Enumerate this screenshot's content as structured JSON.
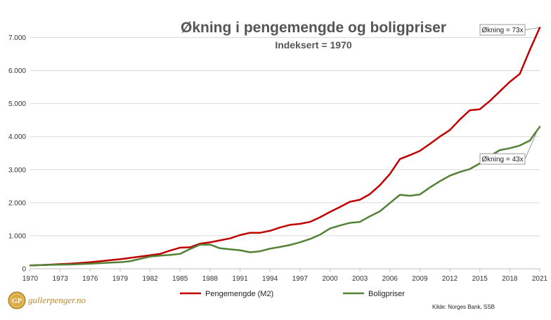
{
  "chart_data": {
    "type": "line",
    "title": "Økning i pengemengde og boligpriser",
    "subtitle": "Indeksert = 1970",
    "x_ticks": [
      "1970",
      "1973",
      "1976",
      "1979",
      "1982",
      "1985",
      "1988",
      "1991",
      "1994",
      "1997",
      "2000",
      "2003",
      "2006",
      "2009",
      "2012",
      "2015",
      "2018",
      "2021"
    ],
    "y_ticks": [
      "0",
      "1.000",
      "2.000",
      "3.000",
      "4.000",
      "5.000",
      "6.000",
      "7.000"
    ],
    "ylim": [
      0,
      7500
    ],
    "xlim": [
      1970,
      2021
    ],
    "grid": true,
    "legend_placement": "bottom",
    "series": [
      {
        "name": "Pengemengde (M2)",
        "color": "#c00000",
        "x": [
          1970,
          1971,
          1972,
          1973,
          1974,
          1975,
          1976,
          1977,
          1978,
          1979,
          1980,
          1981,
          1982,
          1983,
          1984,
          1985,
          1986,
          1987,
          1988,
          1989,
          1990,
          1991,
          1992,
          1993,
          1994,
          1995,
          1996,
          1997,
          1998,
          1999,
          2000,
          2001,
          2002,
          2003,
          2004,
          2005,
          2006,
          2007,
          2008,
          2009,
          2010,
          2011,
          2012,
          2013,
          2014,
          2015,
          2016,
          2017,
          2018,
          2019,
          2020,
          2021
        ],
        "values": [
          100,
          110,
          125,
          140,
          155,
          175,
          200,
          230,
          260,
          290,
          330,
          370,
          410,
          450,
          550,
          640,
          650,
          760,
          800,
          860,
          920,
          1020,
          1090,
          1090,
          1150,
          1250,
          1330,
          1360,
          1420,
          1560,
          1720,
          1870,
          2030,
          2090,
          2260,
          2530,
          2870,
          3320,
          3440,
          3570,
          3780,
          4000,
          4200,
          4520,
          4800,
          4830,
          5080,
          5370,
          5660,
          5900,
          6620,
          7300
        ]
      },
      {
        "name": "Boligpriser",
        "color": "#538135",
        "x": [
          1970,
          1971,
          1972,
          1973,
          1974,
          1975,
          1976,
          1977,
          1978,
          1979,
          1980,
          1981,
          1982,
          1983,
          1984,
          1985,
          1986,
          1987,
          1988,
          1989,
          1990,
          1991,
          1992,
          1993,
          1994,
          1995,
          1996,
          1997,
          1998,
          1999,
          2000,
          2001,
          2002,
          2003,
          2004,
          2005,
          2006,
          2007,
          2008,
          2009,
          2010,
          2011,
          2012,
          2013,
          2014,
          2015,
          2016,
          2017,
          2018,
          2019,
          2020,
          2021
        ],
        "values": [
          100,
          110,
          120,
          125,
          130,
          140,
          155,
          170,
          185,
          200,
          230,
          300,
          370,
          400,
          420,
          450,
          600,
          730,
          730,
          620,
          590,
          560,
          500,
          530,
          610,
          660,
          720,
          800,
          900,
          1030,
          1220,
          1310,
          1390,
          1420,
          1590,
          1740,
          1990,
          2240,
          2210,
          2250,
          2460,
          2650,
          2820,
          2930,
          3020,
          3190,
          3410,
          3590,
          3650,
          3730,
          3880,
          4300
        ]
      }
    ],
    "annotations": [
      {
        "text": "Økning = 73x",
        "series_index": 0,
        "x": 2021,
        "y": 7300
      },
      {
        "text": "Økning = 43x",
        "series_index": 1,
        "x": 2021,
        "y": 4300
      }
    ],
    "source": "Kilde: Norges Bank, SSB"
  },
  "logo": {
    "text": "gullerpenger.no",
    "mark": "GP",
    "color": "#b8892e"
  }
}
